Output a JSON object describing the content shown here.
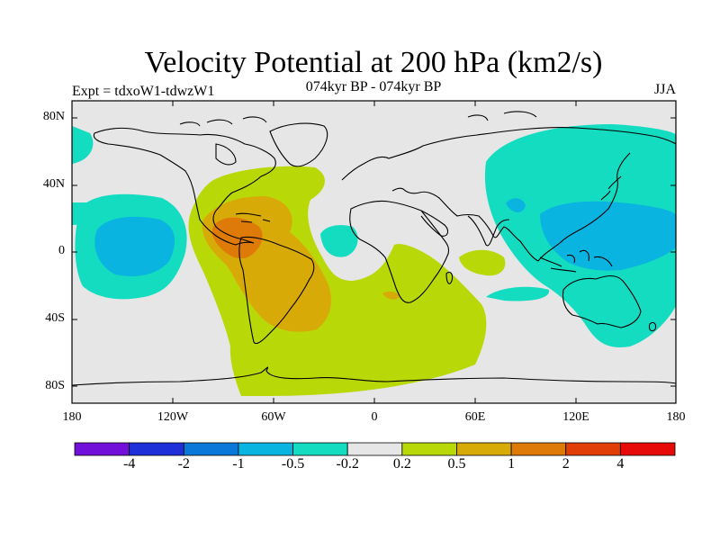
{
  "header": {
    "title": "Velocity Potential at 200 hPa (km2/s)",
    "subtitle": "074kyr BP - 074kyr BP",
    "experiment": "Expt = tdxoW1-tdwzW1",
    "season": "JJA"
  },
  "map": {
    "lat_ticks": [
      "80N",
      "40N",
      "0",
      "40S",
      "80S"
    ],
    "lon_ticks": [
      "180",
      "120W",
      "60W",
      "0",
      "60E",
      "120E",
      "180"
    ],
    "lon_range": [
      -180,
      180
    ],
    "lat_range": [
      -90,
      90
    ],
    "background_color": "#e6e6e6"
  },
  "colorbar": {
    "colors": [
      "#7010d8",
      "#2030d8",
      "#0a78d8",
      "#0ab4e0",
      "#14dcc0",
      "#e6e6e6",
      "#b8d808",
      "#d8aa08",
      "#de7a08",
      "#e03e06",
      "#e60a08"
    ],
    "labels": [
      "-4",
      "-2",
      "-1",
      "-0.5",
      "-0.2",
      "0.2",
      "0.5",
      "1",
      "2",
      "4"
    ]
  }
}
